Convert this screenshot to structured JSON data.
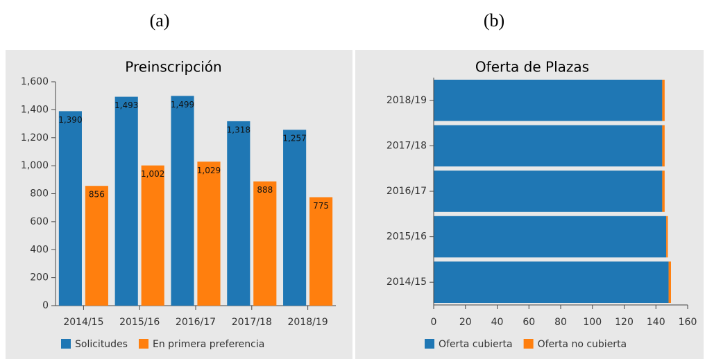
{
  "labels": [
    "(a)",
    "(b)"
  ],
  "chart_data": [
    {
      "type": "bar",
      "title": "Preinscripción",
      "categories": [
        "2014/15",
        "2015/16",
        "2016/17",
        "2017/18",
        "2018/19"
      ],
      "series": [
        {
          "name": "Solicitudes",
          "color": "#1f77b4",
          "values": [
            1390,
            1493,
            1499,
            1318,
            1257
          ],
          "value_labels": [
            "1,390",
            "1,493",
            "1,499",
            "1,318",
            "1,257"
          ]
        },
        {
          "name": "En primera preferencia",
          "color": "#ff7f0e",
          "values": [
            856,
            1002,
            1029,
            888,
            775
          ],
          "value_labels": [
            "856",
            "1,002",
            "1,029",
            "888",
            "775"
          ]
        }
      ],
      "ylim": [
        0,
        1600
      ],
      "yticks": [
        0,
        200,
        400,
        600,
        800,
        {
          "value": 1000,
          "label": "1,000"
        },
        {
          "value": 1200,
          "label": "1,200"
        },
        {
          "value": 1400,
          "label": "1,400"
        },
        {
          "value": 1600,
          "label": "1,600"
        }
      ],
      "legend": "bottom"
    },
    {
      "type": "barh",
      "title": "Oferta de Plazas",
      "stacked": true,
      "categories": [
        "2014/15",
        "2015/16",
        "2016/17",
        "2017/18",
        "2018/19"
      ],
      "series": [
        {
          "name": "Oferta cubierta",
          "color": "#1f77b4",
          "values": [
            148,
            146.5,
            144,
            144,
            144
          ]
        },
        {
          "name": "Oferta no cubierta",
          "color": "#ff7f0e",
          "values": [
            1.5,
            1,
            1.5,
            1.5,
            1.5
          ]
        }
      ],
      "xlim": [
        0,
        160
      ],
      "xticks": [
        0,
        20,
        40,
        60,
        80,
        100,
        120,
        140,
        160
      ],
      "legend": "bottom"
    }
  ]
}
